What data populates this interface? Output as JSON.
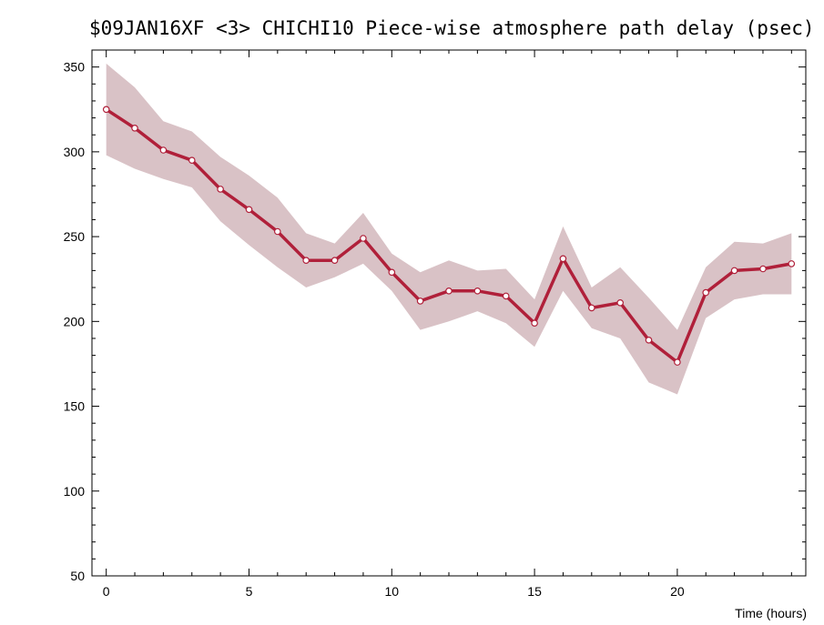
{
  "chart_data": {
    "type": "line",
    "title": "$09JAN16XF <3>   CHICHI10  Piece-wise atmosphere path delay (psec)",
    "xlabel": "Time (hours)",
    "ylabel": "",
    "xlim": [
      -0.5,
      24.5
    ],
    "ylim": [
      50,
      360
    ],
    "x_ticks": [
      0,
      5,
      10,
      15,
      20
    ],
    "y_ticks": [
      50,
      100,
      150,
      200,
      250,
      300,
      350
    ],
    "grid": false,
    "x": [
      0,
      1,
      2,
      3,
      4,
      5,
      6,
      7,
      8,
      9,
      10,
      11,
      12,
      13,
      14,
      15,
      16,
      17,
      18,
      19,
      20,
      21,
      22,
      23,
      24
    ],
    "series": [
      {
        "values": [
          325,
          314,
          301,
          295,
          278,
          266,
          253,
          236,
          236,
          249,
          229,
          212,
          218,
          218,
          215,
          199,
          237,
          208,
          211,
          189,
          176,
          217,
          230,
          231,
          234
        ],
        "upper": [
          352,
          338,
          318,
          312,
          297,
          286,
          273,
          252,
          246,
          264,
          240,
          229,
          236,
          230,
          231,
          213,
          256,
          220,
          232,
          214,
          195,
          232,
          247,
          246,
          252
        ],
        "lower": [
          298,
          290,
          284,
          279,
          259,
          245,
          232,
          220,
          226,
          234,
          218,
          195,
          200,
          206,
          199,
          185,
          218,
          196,
          190,
          164,
          157,
          202,
          213,
          216,
          216
        ],
        "line_color": "#b0203a",
        "band_color": "#d9c2c6",
        "marker_fill": "#ffffff"
      }
    ]
  }
}
